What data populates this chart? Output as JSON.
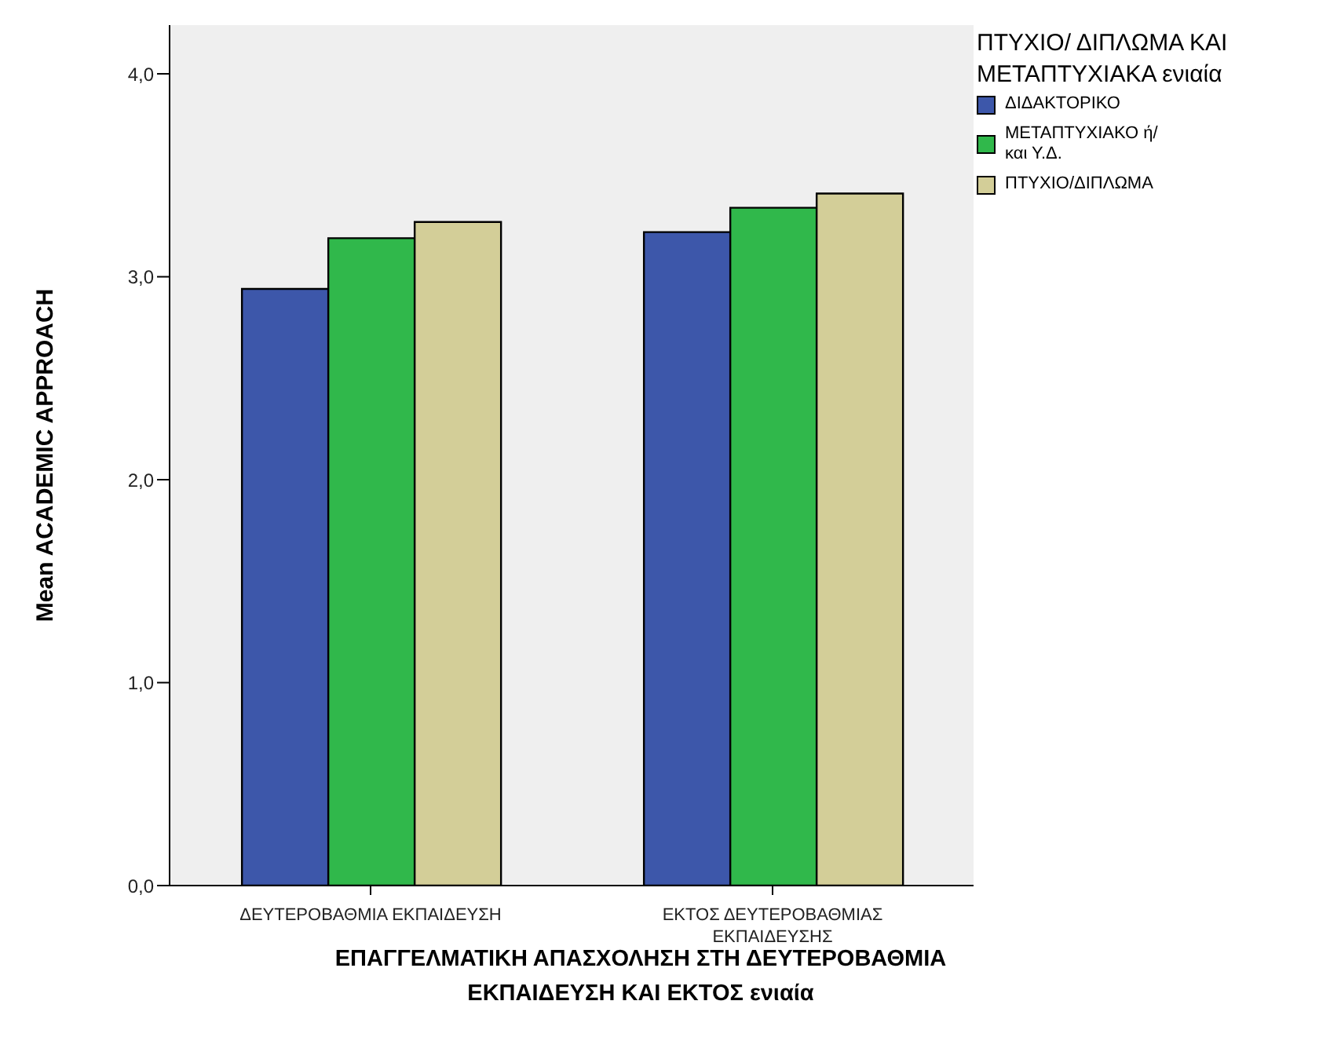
{
  "chart_data": {
    "type": "bar",
    "xlabel": "ΕΠΑΓΓΕΛΜΑΤΙΚΗ ΑΠΑΣΧΟΛΗΣΗ ΣΤΗ ΔΕΥΤΕΡΟΒΑΘΜΙΑ ΕΚΠΑΙΔΕΥΣΗ ΚΑΙ ΕΚΤΟΣ ενιαία",
    "ylabel": "Mean ACADEMIC APPROACH",
    "legend_title": "ΠΤΥΧΙΟ/ ΔΙΠΛΩΜΑ ΚΑΙ ΜΕΤΑΠΤΥΧΙΑΚΑ ενιαία",
    "categories": [
      "ΔΕΥΤΕΡΟΒΑΘΜΙΑ ΕΚΠΑΙΔΕΥΣΗ",
      "ΕΚΤΟΣ ΔΕΥΤΕΡΟΒΑΘΜΙΑΣ ΕΚΠΑΙΔΕΥΣΗΣ"
    ],
    "series": [
      {
        "name": "ΔΙΔΑΚΤΟΡΙΚΟ",
        "color": "#3d57aa",
        "values": [
          2.94,
          3.22
        ]
      },
      {
        "name": "ΜΕΤΑΠΤΥΧΙΑΚΟ ή/και Υ.Δ.",
        "color": "#30b84b",
        "values": [
          3.19,
          3.34
        ]
      },
      {
        "name": "ΠΤΥΧΙΟ/ΔΙΠΛΩΜΑ",
        "color": "#d3ce98",
        "values": [
          3.27,
          3.41
        ]
      }
    ],
    "ylim": [
      0,
      4.24
    ],
    "yticks": [
      {
        "value": 0,
        "label": "0,0"
      },
      {
        "value": 1,
        "label": "1,0"
      },
      {
        "value": 2,
        "label": "2,0"
      },
      {
        "value": 3,
        "label": "3,0"
      },
      {
        "value": 4,
        "label": "4,0"
      }
    ],
    "grid": false,
    "legend": "top right"
  }
}
